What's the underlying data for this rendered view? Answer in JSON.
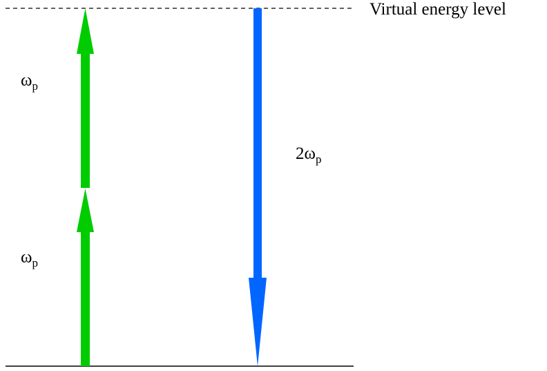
{
  "virtual_level": {
    "label": "Virtual energy level",
    "line_style": "dashed"
  },
  "ground_level": {
    "line_style": "solid"
  },
  "absorption": {
    "color": "#00cc00",
    "direction": "up",
    "photons": [
      {
        "symbol": "ω",
        "subscript": "p"
      },
      {
        "symbol": "ω",
        "subscript": "p"
      }
    ]
  },
  "emission": {
    "color": "#0066ff",
    "direction": "down",
    "coefficient": "2",
    "symbol": "ω",
    "subscript": "p"
  }
}
